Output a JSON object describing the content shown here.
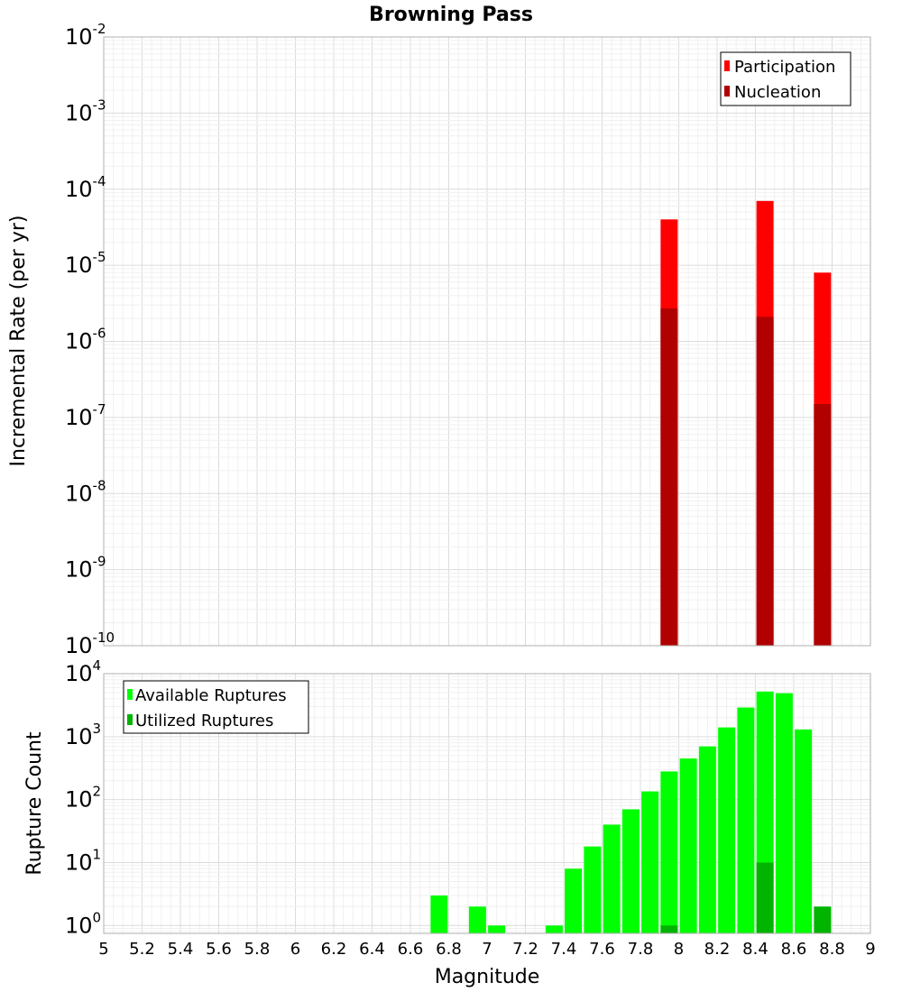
{
  "chart_data": [
    {
      "type": "bar",
      "title": "Browning Pass",
      "xlabel": "",
      "ylabel": "Incremental Rate (per yr)",
      "yscale": "log",
      "ylim": [
        1e-10,
        0.01
      ],
      "xlim": [
        5,
        9
      ],
      "grid": true,
      "legend_position": "top-right",
      "series": [
        {
          "name": "Participation",
          "color": "#ff0000",
          "x": [
            7.95,
            8.45,
            8.75
          ],
          "values": [
            4e-05,
            7e-05,
            8e-06
          ]
        },
        {
          "name": "Nucleation",
          "color": "#b00000",
          "x": [
            7.95,
            8.45,
            8.75
          ],
          "values": [
            2.7e-06,
            2.1e-06,
            1.5e-07
          ]
        }
      ]
    },
    {
      "type": "bar",
      "xlabel": "Magnitude",
      "ylabel": "Rupture Count",
      "yscale": "log",
      "ylim": [
        0.75,
        10000
      ],
      "xlim": [
        5,
        9
      ],
      "grid": true,
      "legend_position": "top-left",
      "x_ticks": [
        "5",
        "5.2",
        "5.4",
        "5.6",
        "5.8",
        "6",
        "6.2",
        "6.4",
        "6.6",
        "6.8",
        "7",
        "7.2",
        "7.4",
        "7.6",
        "7.8",
        "8",
        "8.2",
        "8.4",
        "8.6",
        "8.8",
        "9"
      ],
      "series": [
        {
          "name": "Available Ruptures",
          "color": "#00ff00",
          "x": [
            6.75,
            6.95,
            7.05,
            7.35,
            7.45,
            7.55,
            7.65,
            7.75,
            7.85,
            7.95,
            8.05,
            8.15,
            8.25,
            8.35,
            8.45,
            8.55,
            8.65
          ],
          "values": [
            3,
            2,
            1,
            1,
            8,
            18,
            40,
            70,
            135,
            280,
            450,
            700,
            1400,
            2900,
            5200,
            4900,
            1300
          ]
        },
        {
          "name": "Utilized Ruptures",
          "color": "#00b400",
          "x": [
            7.95,
            8.45,
            8.75
          ],
          "values": [
            1,
            10,
            2
          ]
        }
      ]
    }
  ]
}
